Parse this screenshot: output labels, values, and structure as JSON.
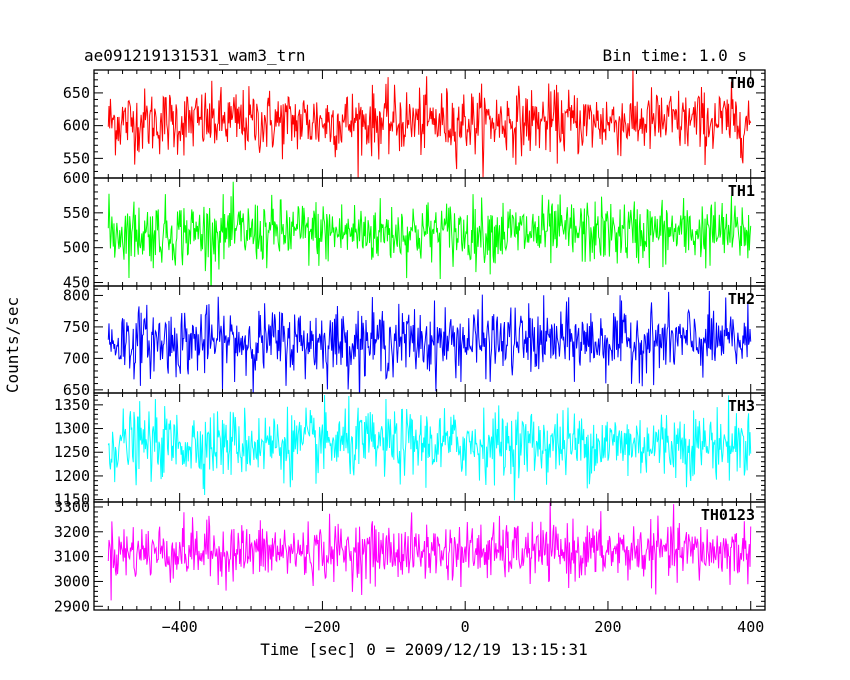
{
  "chart_data": {
    "type": "line",
    "title_left": "ae091219131531_wam3_trn",
    "title_right": "Bin time: 1.0 s",
    "xlabel": "Time [sec] 0 = 2009/12/19 13:15:31",
    "ylabel": "Counts/sec",
    "xlim": [
      -520,
      420
    ],
    "x_range": [
      -500,
      400
    ],
    "x_step": 1,
    "xticks": [
      -400,
      -200,
      0,
      200,
      400
    ],
    "xtick_labels": [
      "−400",
      "−200",
      "0",
      "200",
      "400"
    ],
    "panels": [
      {
        "name": "TH0",
        "color": "#ff0000",
        "ylim": [
          520,
          685
        ],
        "yticks": [
          550,
          600,
          650
        ],
        "ytick_labels": [
          "550",
          "600",
          "650"
        ],
        "mean": 606,
        "noise_sd": 25
      },
      {
        "name": "TH1",
        "color": "#00ff00",
        "ylim": [
          445,
          600
        ],
        "yticks": [
          450,
          500,
          550,
          600
        ],
        "ytick_labels": [
          "450",
          "500",
          "550",
          "600"
        ],
        "mean": 522,
        "noise_sd": 23
      },
      {
        "name": "TH2",
        "color": "#0000ff",
        "ylim": [
          645,
          815
        ],
        "yticks": [
          650,
          700,
          750,
          800
        ],
        "ytick_labels": [
          "650",
          "700",
          "750",
          "800"
        ],
        "mean": 727,
        "noise_sd": 27
      },
      {
        "name": "TH3",
        "color": "#00ffff",
        "ylim": [
          1145,
          1375
        ],
        "yticks": [
          1150,
          1200,
          1250,
          1300,
          1350
        ],
        "ytick_labels": [
          "1150",
          "1200",
          "1250",
          "1300",
          "1350"
        ],
        "mean": 1268,
        "noise_sd": 36
      },
      {
        "name": "TH0123",
        "color": "#ff00ff",
        "ylim": [
          2885,
          3320
        ],
        "yticks": [
          2900,
          3000,
          3100,
          3200,
          3300
        ],
        "ytick_labels": [
          "2900",
          "3000",
          "3100",
          "3200",
          "3300"
        ],
        "mean": 3120,
        "noise_sd": 58
      }
    ]
  }
}
